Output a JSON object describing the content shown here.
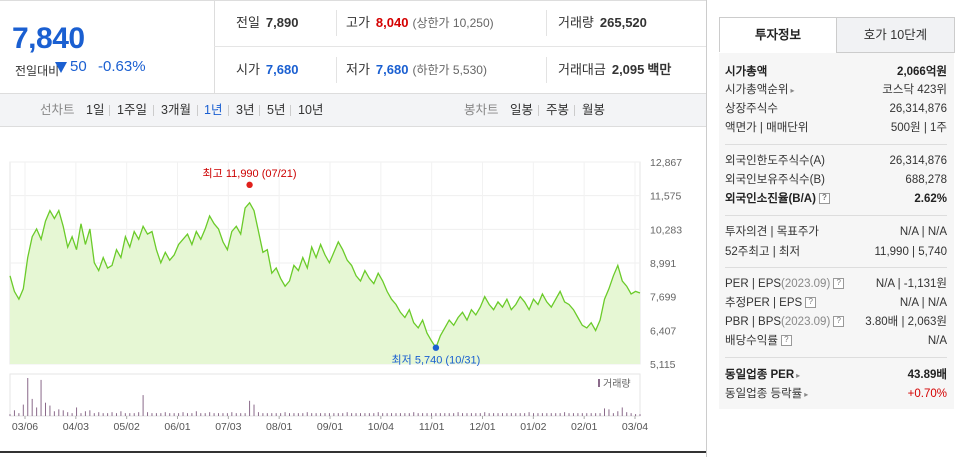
{
  "price": {
    "current": "7,840",
    "change_label": "전일대비",
    "change_value": "50",
    "change_pct": "-0.63%"
  },
  "stats": {
    "prev_close": {
      "label": "전일",
      "value": "7,890"
    },
    "high": {
      "label": "고가",
      "value": "8,040",
      "sub": "(상한가 10,250)"
    },
    "volume": {
      "label": "거래량",
      "value": "265,520"
    },
    "open": {
      "label": "시가",
      "value": "7,680"
    },
    "low": {
      "label": "저가",
      "value": "7,680",
      "sub": "(하한가 5,530)"
    },
    "amount": {
      "label": "거래대금",
      "value": "2,095",
      "unit": "백만"
    }
  },
  "period_bar": {
    "line_head": "선차트",
    "line_items": [
      "1일",
      "1주일",
      "3개월",
      "1년",
      "3년",
      "5년",
      "10년"
    ],
    "selected": "1년",
    "candle_head": "봉차트",
    "candle_items": [
      "일봉",
      "주봉",
      "월봉"
    ]
  },
  "chart_data": {
    "type": "area",
    "y_ticks": [
      "12,867",
      "11,575",
      "10,283",
      "8,991",
      "7,699",
      "6,407",
      "5,115"
    ],
    "ylim": [
      5115,
      12867
    ],
    "x_ticks": [
      "03/06",
      "04/03",
      "05/02",
      "06/01",
      "07/03",
      "08/01",
      "09/01",
      "10/04",
      "11/01",
      "12/01",
      "01/02",
      "02/01",
      "03/04"
    ],
    "high_label": "최고 11,990 (07/21)",
    "low_label": "최저 5,740 (10/31)",
    "volume_label": "거래량",
    "series": [
      8500,
      7900,
      7600,
      8000,
      9200,
      10000,
      10300,
      9900,
      10600,
      11000,
      10700,
      11000,
      10400,
      9600,
      10000,
      9500,
      10500,
      9700,
      10300,
      9000,
      8700,
      9200,
      8800,
      8900,
      9500,
      9200,
      10000,
      9600,
      10200,
      9900,
      10400,
      10100,
      10200,
      9500,
      9000,
      9400,
      9100,
      9300,
      9700,
      9900,
      10100,
      9700,
      10200,
      9900,
      10300,
      10800,
      10500,
      10300,
      9800,
      9500,
      10200,
      10400,
      10100,
      11100,
      11300,
      11000,
      10200,
      9400,
      9500,
      8600,
      8800,
      8400,
      8100,
      8300,
      8900,
      8700,
      9200,
      8800,
      9600,
      9200,
      9700,
      9300,
      9000,
      9400,
      9800,
      9500,
      9100,
      8900,
      8500,
      8300,
      8700,
      8400,
      8200,
      8600,
      8300,
      7900,
      7600,
      7400,
      7100,
      6900,
      7200,
      6700,
      6500,
      6800,
      6300,
      6000,
      5740,
      6200,
      6500,
      6800,
      6600,
      6900,
      7100,
      6800,
      7200,
      7000,
      7300,
      7700,
      7400,
      7200,
      7500,
      7300,
      7600,
      7200,
      7400,
      7700,
      7500,
      7200,
      7600,
      7400,
      7800,
      7500,
      7300,
      7600,
      7900,
      7500,
      7400,
      7200,
      6900,
      6600,
      6500,
      6700,
      6400,
      6800,
      7600,
      8000,
      8500,
      8900,
      8300,
      8100,
      7800,
      7900,
      7840
    ],
    "volume": [
      2,
      6,
      3,
      12,
      40,
      18,
      9,
      38,
      14,
      11,
      5,
      7,
      6,
      4,
      3,
      9,
      3,
      5,
      6,
      3,
      4,
      3,
      3,
      4,
      3,
      5,
      3,
      3,
      3,
      4,
      22,
      4,
      3,
      3,
      3,
      4,
      3,
      3,
      3,
      4,
      3,
      3,
      5,
      3,
      3,
      4,
      3,
      3,
      3,
      3,
      4,
      3,
      3,
      3,
      16,
      12,
      4,
      3,
      3,
      3,
      3,
      3,
      4,
      3,
      3,
      3,
      3,
      4,
      3,
      3,
      3,
      3,
      3,
      3,
      3,
      3,
      4,
      3,
      3,
      3,
      3,
      3,
      3,
      4,
      3,
      3,
      3,
      3,
      3,
      3,
      3,
      4,
      3,
      3,
      3,
      3,
      3,
      3,
      3,
      3,
      3,
      4,
      3,
      3,
      3,
      3,
      3,
      4,
      3,
      3,
      3,
      3,
      3,
      3,
      3,
      3,
      3,
      4,
      3,
      3,
      3,
      3,
      3,
      3,
      3,
      4,
      3,
      3,
      3,
      3,
      3,
      3,
      3,
      3,
      8,
      7,
      3,
      5,
      9,
      4,
      3,
      2,
      2
    ]
  },
  "tabs": {
    "invest": "투자정보",
    "quote": "호가 10단계"
  },
  "info": {
    "market_cap": {
      "label": "시가총액",
      "value": "2,066억원"
    },
    "market_cap_rank": {
      "label": "시가총액순위",
      "value": "코스닥 423위"
    },
    "shares": {
      "label": "상장주식수",
      "value": "26,314,876"
    },
    "par": {
      "label": "액면가 | 매매단위",
      "value": "500원 | 1주"
    },
    "foreign_limit": {
      "label": "외국인한도주식수(A)",
      "value": "26,314,876"
    },
    "foreign_hold": {
      "label": "외국인보유주식수(B)",
      "value": "688,278"
    },
    "foreign_ratio": {
      "label": "외국인소진율(B/A)",
      "value": "2.62%"
    },
    "opinion": {
      "label": "투자의견 | 목표주가",
      "value": "N/A | N/A"
    },
    "range52": {
      "label": "52주최고 | 최저",
      "value": "11,990 | 5,740"
    },
    "per_eps": {
      "label": "PER | EPS",
      "date": "(2023.09)",
      "value": "N/A | -1,131원"
    },
    "est_per": {
      "label": "추정PER | EPS",
      "value": "N/A | N/A"
    },
    "pbr_bps": {
      "label": "PBR | BPS",
      "date": "(2023.09)",
      "value": "3.80배 | 2,063원"
    },
    "dividend": {
      "label": "배당수익률",
      "value": "N/A"
    },
    "sector_per": {
      "label": "동일업종 PER",
      "value": "43.89배"
    },
    "sector_chg": {
      "label": "동일업종 등락률",
      "value": "+0.70%"
    }
  },
  "colors": {
    "up": "#d40000",
    "down": "#1a5fd1",
    "area_fill": "#e6f7d4",
    "line": "#6bcb2a"
  }
}
